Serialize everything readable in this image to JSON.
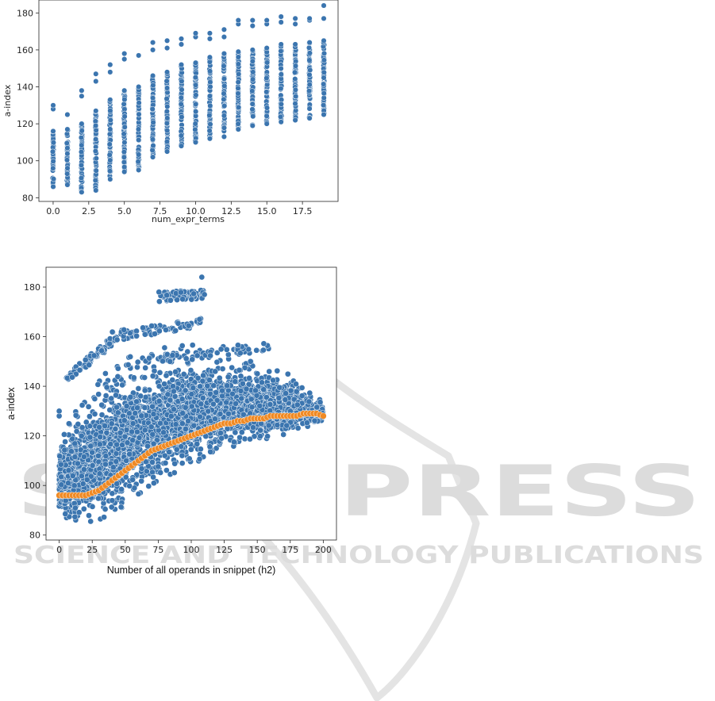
{
  "watermark": {
    "main": "SCITEPRESS",
    "sub": "SCIENCE AND TECHNOLOGY PUBLICATIONS"
  },
  "colors": {
    "blue": "#3b75af",
    "orange": "#f08a24",
    "edge": "#ffffff",
    "axis": "#262626",
    "watermark": "#dcdcdc"
  },
  "chart_data": [
    {
      "type": "scatter",
      "title": "",
      "xlabel": "num_expr_terms",
      "ylabel": "a-index",
      "xlim": [
        -1,
        20
      ],
      "ylim": [
        78,
        187
      ],
      "grid": false,
      "xticks": [
        0,
        2.5,
        5,
        7.5,
        10,
        12.5,
        15,
        17.5
      ],
      "xtick_labels": [
        "0.0",
        "2.5",
        "5.0",
        "7.5",
        "10.0",
        "12.5",
        "15.0",
        "17.5"
      ],
      "yticks": [
        80,
        100,
        120,
        140,
        160,
        180
      ],
      "series": [
        {
          "color": "#3b75af",
          "x": [
            0,
            1,
            2,
            3,
            4,
            5,
            6,
            7,
            8,
            9,
            10,
            11,
            12,
            13,
            14,
            15,
            16,
            17,
            18,
            19
          ],
          "y_min": [
            86,
            87,
            83,
            84,
            90,
            94,
            95,
            102,
            105,
            108,
            110,
            112,
            113,
            117,
            119,
            120,
            121,
            122,
            123,
            125
          ],
          "y_max": [
            116,
            117,
            120,
            127,
            133,
            138,
            140,
            146,
            148,
            152,
            153,
            156,
            158,
            159,
            160,
            161,
            163,
            163,
            164,
            165
          ],
          "outliers": [
            [
              0,
              128
            ],
            [
              0,
              130
            ],
            [
              1,
              125
            ],
            [
              2,
              135
            ],
            [
              2,
              138
            ],
            [
              3,
              143
            ],
            [
              3,
              147
            ],
            [
              4,
              148
            ],
            [
              4,
              152
            ],
            [
              5,
              155
            ],
            [
              5,
              158
            ],
            [
              6,
              157
            ],
            [
              7,
              160
            ],
            [
              7,
              164
            ],
            [
              8,
              161
            ],
            [
              8,
              165
            ],
            [
              9,
              163
            ],
            [
              9,
              166
            ],
            [
              10,
              167
            ],
            [
              10,
              169
            ],
            [
              11,
              166
            ],
            [
              11,
              169
            ],
            [
              12,
              167
            ],
            [
              12,
              171
            ],
            [
              13,
              174
            ],
            [
              13,
              176
            ],
            [
              14,
              173
            ],
            [
              14,
              176
            ],
            [
              15,
              174
            ],
            [
              15,
              176
            ],
            [
              16,
              175
            ],
            [
              16,
              178
            ],
            [
              17,
              174
            ],
            [
              17,
              177
            ],
            [
              18,
              176
            ],
            [
              18,
              177
            ],
            [
              19,
              177
            ],
            [
              19,
              184
            ]
          ]
        }
      ]
    },
    {
      "type": "scatter",
      "title": "",
      "xlabel": "Number of all operands in snippet (h2)",
      "ylabel": "a-index",
      "xlim": [
        -10,
        210
      ],
      "ylim": [
        78,
        188
      ],
      "grid": false,
      "xticks": [
        0,
        25,
        50,
        75,
        100,
        125,
        150,
        175,
        200
      ],
      "xtick_labels": [
        "0",
        "25",
        "50",
        "75",
        "100",
        "125",
        "150",
        "175",
        "200"
      ],
      "yticks": [
        80,
        100,
        120,
        140,
        160,
        180
      ],
      "series": [
        {
          "color": "#3b75af",
          "x_range": [
            0,
            200
          ],
          "lower_envelope": [
            [
              0,
              87
            ],
            [
              20,
              84
            ],
            [
              30,
              86
            ],
            [
              45,
              90
            ],
            [
              60,
              95
            ],
            [
              75,
              100
            ],
            [
              100,
              108
            ],
            [
              125,
              114
            ],
            [
              150,
              118
            ],
            [
              175,
              121
            ],
            [
              200,
              125
            ]
          ],
          "upper_envelope": [
            [
              0,
              118
            ],
            [
              10,
              128
            ],
            [
              25,
              140
            ],
            [
              40,
              148
            ],
            [
              50,
              152
            ],
            [
              75,
              155
            ],
            [
              90,
              157
            ],
            [
              100,
              157
            ],
            [
              125,
              152
            ],
            [
              150,
              150
            ],
            [
              175,
              145
            ],
            [
              190,
              138
            ],
            [
              200,
              134
            ]
          ],
          "outer_bands": [
            {
              "x": [
                5,
                40
              ],
              "y_start": 143,
              "y_end": 158
            },
            {
              "x": [
                40,
                110
              ],
              "y_start": 160,
              "y_end": 166
            },
            {
              "x": [
                75,
                110
              ],
              "y_start": 176,
              "y_end": 177
            },
            {
              "x": [
                50,
                160
              ],
              "y_start": 150,
              "y_end": 156
            }
          ],
          "outliers": [
            [
              108,
              184
            ],
            [
              110,
              177
            ],
            [
              0,
              128
            ],
            [
              0,
              130
            ]
          ]
        },
        {
          "color": "#f08a24",
          "x": [
            0,
            5,
            10,
            15,
            20,
            25,
            30,
            35,
            40,
            45,
            50,
            55,
            60,
            65,
            70,
            75,
            80,
            85,
            90,
            95,
            100,
            105,
            110,
            115,
            120,
            125,
            130,
            135,
            140,
            145,
            150,
            155,
            160,
            165,
            170,
            175,
            180,
            185,
            190,
            195,
            200
          ],
          "y": [
            96,
            96,
            96,
            96,
            96,
            97,
            98,
            100,
            102,
            104,
            106,
            108,
            110,
            112,
            114,
            115,
            116,
            117,
            118,
            119,
            120,
            121,
            122,
            123,
            124,
            125,
            125,
            126,
            126,
            127,
            127,
            127,
            128,
            128,
            128,
            128,
            128,
            129,
            129,
            129,
            128
          ]
        }
      ]
    }
  ]
}
